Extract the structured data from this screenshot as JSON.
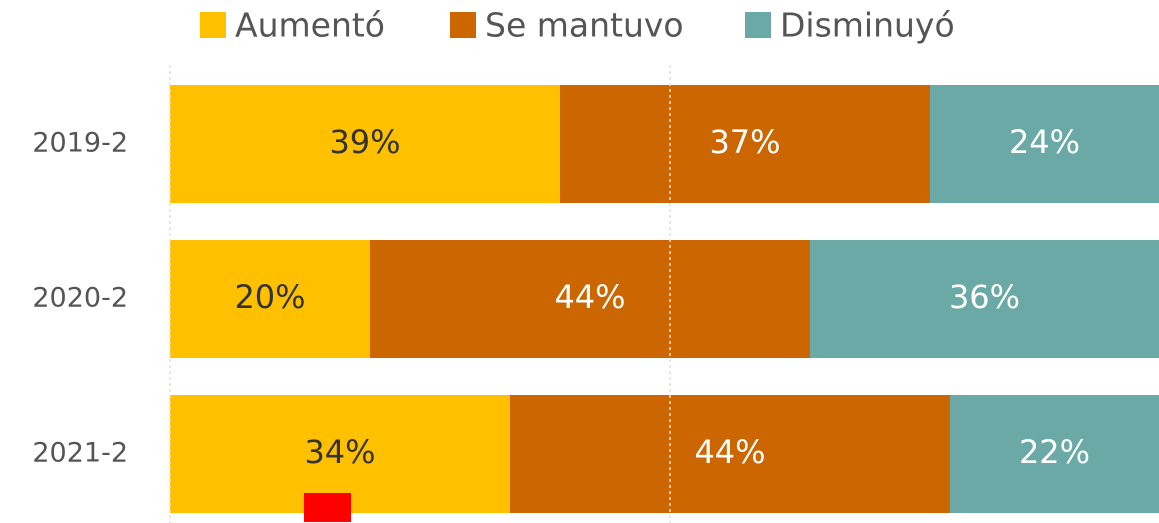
{
  "chart_data": {
    "type": "stacked-bar-horizontal",
    "categories": [
      "2019-2",
      "2020-2",
      "2021-2"
    ],
    "series": [
      {
        "name": "Aumentó",
        "color": "#FFC000",
        "values": [
          39,
          20,
          34
        ],
        "value_labels": [
          "39%",
          "20%",
          "34%"
        ],
        "label_color": "#333333"
      },
      {
        "name": "Se mantuvo",
        "color": "#CC6600",
        "values": [
          37,
          44,
          44
        ],
        "value_labels": [
          "37%",
          "44%",
          "44%"
        ],
        "label_color": "#ffffff"
      },
      {
        "name": "Disminuyó",
        "color": "#6AA9A5",
        "values": [
          24,
          36,
          22
        ],
        "value_labels": [
          "24%",
          "36%",
          "22%"
        ],
        "label_color": "#ffffff"
      }
    ],
    "xlim": [
      0,
      100
    ],
    "xticks": [
      0,
      50,
      100
    ],
    "grid": true,
    "legend": "top"
  }
}
